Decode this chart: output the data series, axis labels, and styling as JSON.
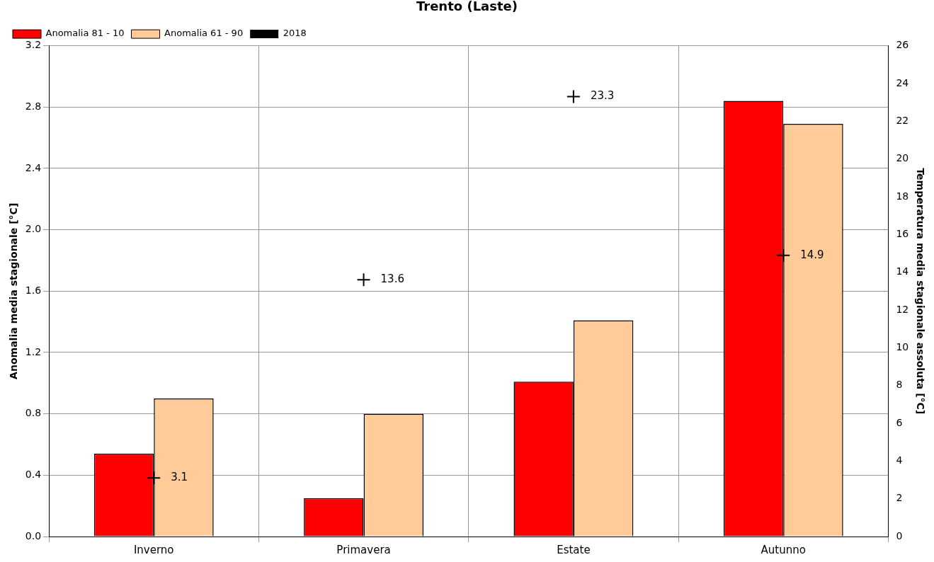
{
  "chart_data": {
    "type": "bar",
    "title": "Trento (Laste)",
    "ylabel": "Anomalia media stagionale [°C]",
    "y2label": "Temperatura media stagionale assoluta [°C]",
    "categories": [
      "Inverno",
      "Primavera",
      "Estate",
      "Autunno"
    ],
    "series": [
      {
        "name": "Anomalia 81 - 10",
        "color": "#ff0000",
        "values": [
          0.54,
          0.25,
          1.01,
          2.84
        ]
      },
      {
        "name": "Anomalia 61 - 90",
        "color": "#ffcc99",
        "values": [
          0.9,
          0.8,
          1.41,
          2.69
        ]
      },
      {
        "name": "2018",
        "type": "scatter",
        "axis": "y2",
        "color": "#000000",
        "x": [
          "Inverno",
          "Primavera",
          "Estate",
          "Autunno"
        ],
        "values": [
          3.1,
          13.6,
          23.3,
          14.9
        ],
        "value_labels": [
          "3.1",
          "13.6",
          "23.3",
          "14.9"
        ]
      }
    ],
    "ylim": [
      0,
      3.2
    ],
    "yticks": [
      {
        "value": 0,
        "label": "0.0"
      },
      0.4,
      0.8,
      1.2,
      1.6,
      {
        "value": 2,
        "label": "2.0"
      },
      2.4,
      2.8,
      3.2
    ],
    "y2lim": [
      0,
      26
    ],
    "y2ticks": [
      0,
      2,
      4,
      6,
      8,
      10,
      12,
      14,
      16,
      18,
      20,
      22,
      24,
      26
    ],
    "grid": true,
    "legend": "top left",
    "marker": "cross"
  }
}
